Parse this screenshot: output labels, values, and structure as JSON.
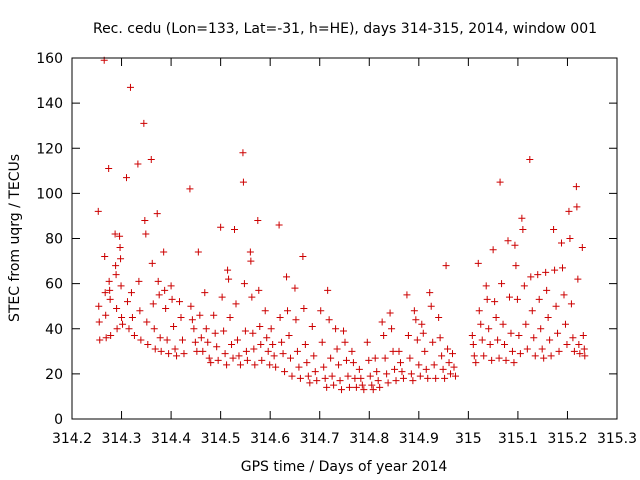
{
  "chart_data": {
    "type": "scatter",
    "title": "Rec. cedu (Lon=133, Lat=-31, h=HE), days 314-315, 2014, window 001",
    "xlabel": "GPS time / Days of year 2014",
    "ylabel": "STEC from uqrg / TECUs",
    "xlim": [
      314.2,
      315.3
    ],
    "ylim": [
      0,
      160
    ],
    "xticks": [
      314.2,
      314.3,
      314.4,
      314.5,
      314.6,
      314.7,
      314.8,
      314.9,
      315,
      315.1,
      315.2,
      315.3
    ],
    "xtick_labels": [
      "314.2",
      "314.3",
      "314.4",
      "314.5",
      "314.6",
      "314.7",
      "314.8",
      "314.9",
      "315",
      "315.1",
      "315.2",
      "315.3"
    ],
    "yticks": [
      0,
      20,
      40,
      60,
      80,
      100,
      120,
      140,
      160
    ],
    "ytick_labels": [
      "0",
      "20",
      "40",
      "60",
      "80",
      "100",
      "120",
      "140",
      "160"
    ],
    "grid": false,
    "legend": "none",
    "marker": "plus",
    "color": "#cc0000",
    "series": [
      {
        "points": [
          [
            314.253,
            92
          ],
          [
            314.254,
            50
          ],
          [
            314.255,
            43
          ],
          [
            314.256,
            35
          ],
          [
            314.265,
            159
          ],
          [
            314.266,
            72
          ],
          [
            314.267,
            56
          ],
          [
            314.268,
            46
          ],
          [
            314.269,
            36
          ],
          [
            314.274,
            111
          ],
          [
            314.275,
            61
          ],
          [
            314.276,
            57
          ],
          [
            314.277,
            53
          ],
          [
            314.278,
            37
          ],
          [
            314.287,
            82
          ],
          [
            314.288,
            68
          ],
          [
            314.289,
            64
          ],
          [
            314.29,
            49
          ],
          [
            314.291,
            40
          ],
          [
            314.296,
            81
          ],
          [
            314.297,
            76
          ],
          [
            314.298,
            71
          ],
          [
            314.299,
            59
          ],
          [
            314.3,
            45
          ],
          [
            314.302,
            42
          ],
          [
            314.31,
            107
          ],
          [
            314.312,
            52
          ],
          [
            314.315,
            40
          ],
          [
            314.318,
            147
          ],
          [
            314.32,
            56
          ],
          [
            314.322,
            45
          ],
          [
            314.326,
            37
          ],
          [
            314.333,
            113
          ],
          [
            314.335,
            61
          ],
          [
            314.337,
            48
          ],
          [
            314.339,
            35
          ],
          [
            314.345,
            131
          ],
          [
            314.347,
            88
          ],
          [
            314.349,
            82
          ],
          [
            314.351,
            43
          ],
          [
            314.353,
            33
          ],
          [
            314.36,
            115
          ],
          [
            314.362,
            69
          ],
          [
            314.364,
            51
          ],
          [
            314.366,
            40
          ],
          [
            314.368,
            31
          ],
          [
            314.372,
            91
          ],
          [
            314.374,
            61
          ],
          [
            314.376,
            55
          ],
          [
            314.378,
            36
          ],
          [
            314.38,
            30
          ],
          [
            314.385,
            74
          ],
          [
            314.387,
            57
          ],
          [
            314.389,
            49
          ],
          [
            314.392,
            35
          ],
          [
            314.395,
            29
          ],
          [
            314.4,
            59
          ],
          [
            314.402,
            53
          ],
          [
            314.405,
            41
          ],
          [
            314.408,
            31
          ],
          [
            314.411,
            28
          ],
          [
            314.417,
            52
          ],
          [
            314.42,
            45
          ],
          [
            314.423,
            35
          ],
          [
            314.426,
            29
          ],
          [
            314.438,
            102
          ],
          [
            314.44,
            50
          ],
          [
            314.443,
            44
          ],
          [
            314.446,
            40
          ],
          [
            314.449,
            34
          ],
          [
            314.452,
            30
          ],
          [
            314.455,
            74
          ],
          [
            314.458,
            46
          ],
          [
            314.461,
            36
          ],
          [
            314.464,
            30
          ],
          [
            314.468,
            56
          ],
          [
            314.471,
            40
          ],
          [
            314.474,
            34
          ],
          [
            314.477,
            27
          ],
          [
            314.48,
            25
          ],
          [
            314.486,
            46
          ],
          [
            314.489,
            38
          ],
          [
            314.492,
            32
          ],
          [
            314.495,
            26
          ],
          [
            314.5,
            85
          ],
          [
            314.503,
            54
          ],
          [
            314.506,
            39
          ],
          [
            314.509,
            29
          ],
          [
            314.512,
            24
          ],
          [
            314.514,
            66
          ],
          [
            314.516,
            62
          ],
          [
            314.519,
            45
          ],
          [
            314.522,
            33
          ],
          [
            314.525,
            27
          ],
          [
            314.528,
            84
          ],
          [
            314.531,
            51
          ],
          [
            314.534,
            35
          ],
          [
            314.537,
            28
          ],
          [
            314.54,
            24
          ],
          [
            314.545,
            118
          ],
          [
            314.546,
            105
          ],
          [
            314.548,
            60
          ],
          [
            314.55,
            39
          ],
          [
            314.552,
            30
          ],
          [
            314.554,
            26
          ],
          [
            314.56,
            74
          ],
          [
            314.561,
            70
          ],
          [
            314.563,
            54
          ],
          [
            314.565,
            38
          ],
          [
            314.567,
            31
          ],
          [
            314.569,
            24
          ],
          [
            314.575,
            88
          ],
          [
            314.577,
            57
          ],
          [
            314.579,
            41
          ],
          [
            314.581,
            33
          ],
          [
            314.583,
            26
          ],
          [
            314.59,
            48
          ],
          [
            314.593,
            36
          ],
          [
            314.596,
            30
          ],
          [
            314.599,
            24
          ],
          [
            314.602,
            40
          ],
          [
            314.605,
            33
          ],
          [
            314.608,
            28
          ],
          [
            314.611,
            23
          ],
          [
            314.618,
            86
          ],
          [
            314.62,
            45
          ],
          [
            314.623,
            34
          ],
          [
            314.626,
            29
          ],
          [
            314.629,
            21
          ],
          [
            314.633,
            63
          ],
          [
            314.635,
            48
          ],
          [
            314.638,
            37
          ],
          [
            314.641,
            27
          ],
          [
            314.644,
            19
          ],
          [
            314.65,
            58
          ],
          [
            314.652,
            44
          ],
          [
            314.655,
            30
          ],
          [
            314.658,
            23
          ],
          [
            314.661,
            18
          ],
          [
            314.666,
            72
          ],
          [
            314.668,
            49
          ],
          [
            314.671,
            33
          ],
          [
            314.674,
            25
          ],
          [
            314.677,
            19
          ],
          [
            314.68,
            16
          ],
          [
            314.685,
            41
          ],
          [
            314.688,
            28
          ],
          [
            314.691,
            21
          ],
          [
            314.694,
            17
          ],
          [
            314.702,
            48
          ],
          [
            314.705,
            34
          ],
          [
            314.708,
            23
          ],
          [
            314.711,
            18
          ],
          [
            314.714,
            14
          ],
          [
            314.716,
            57
          ],
          [
            314.719,
            44
          ],
          [
            314.722,
            27
          ],
          [
            314.725,
            19
          ],
          [
            314.728,
            15
          ],
          [
            314.732,
            40
          ],
          [
            314.735,
            31
          ],
          [
            314.738,
            24
          ],
          [
            314.741,
            17
          ],
          [
            314.744,
            13
          ],
          [
            314.748,
            39
          ],
          [
            314.751,
            34
          ],
          [
            314.754,
            26
          ],
          [
            314.757,
            19
          ],
          [
            314.76,
            14
          ],
          [
            314.765,
            30
          ],
          [
            314.768,
            25
          ],
          [
            314.771,
            18
          ],
          [
            314.774,
            14
          ],
          [
            314.78,
            22
          ],
          [
            314.783,
            18
          ],
          [
            314.786,
            15
          ],
          [
            314.789,
            13
          ],
          [
            314.796,
            34
          ],
          [
            314.799,
            26
          ],
          [
            314.802,
            19
          ],
          [
            314.805,
            15
          ],
          [
            314.808,
            13
          ],
          [
            314.812,
            27
          ],
          [
            314.815,
            21
          ],
          [
            314.818,
            17
          ],
          [
            314.821,
            14
          ],
          [
            314.826,
            43
          ],
          [
            314.829,
            37
          ],
          [
            314.832,
            27
          ],
          [
            314.835,
            20
          ],
          [
            314.838,
            16
          ],
          [
            314.842,
            47
          ],
          [
            314.845,
            40
          ],
          [
            314.848,
            30
          ],
          [
            314.851,
            22
          ],
          [
            314.854,
            17
          ],
          [
            314.86,
            30
          ],
          [
            314.863,
            25
          ],
          [
            314.866,
            21
          ],
          [
            314.869,
            18
          ],
          [
            314.876,
            55
          ],
          [
            314.879,
            37
          ],
          [
            314.882,
            27
          ],
          [
            314.885,
            20
          ],
          [
            314.888,
            17
          ],
          [
            314.891,
            48
          ],
          [
            314.894,
            44
          ],
          [
            314.897,
            35
          ],
          [
            314.9,
            24
          ],
          [
            314.903,
            19
          ],
          [
            314.906,
            42
          ],
          [
            314.909,
            38
          ],
          [
            314.912,
            30
          ],
          [
            314.915,
            22
          ],
          [
            314.918,
            18
          ],
          [
            314.922,
            56
          ],
          [
            314.925,
            50
          ],
          [
            314.928,
            34
          ],
          [
            314.931,
            24
          ],
          [
            314.934,
            18
          ],
          [
            314.94,
            45
          ],
          [
            314.943,
            36
          ],
          [
            314.946,
            28
          ],
          [
            314.949,
            22
          ],
          [
            314.952,
            18
          ],
          [
            314.955,
            68
          ],
          [
            314.958,
            31
          ],
          [
            314.961,
            25
          ],
          [
            314.964,
            20
          ],
          [
            314.968,
            29
          ],
          [
            314.971,
            23
          ],
          [
            314.974,
            19
          ],
          [
            315.008,
            37
          ],
          [
            315.01,
            33
          ],
          [
            315.012,
            28
          ],
          [
            315.015,
            25
          ],
          [
            315.02,
            69
          ],
          [
            315.022,
            48
          ],
          [
            315.025,
            42
          ],
          [
            315.028,
            35
          ],
          [
            315.031,
            28
          ],
          [
            315.036,
            59
          ],
          [
            315.038,
            53
          ],
          [
            315.041,
            40
          ],
          [
            315.044,
            33
          ],
          [
            315.047,
            26
          ],
          [
            315.05,
            75
          ],
          [
            315.053,
            52
          ],
          [
            315.056,
            45
          ],
          [
            315.059,
            35
          ],
          [
            315.062,
            27
          ],
          [
            315.064,
            105
          ],
          [
            315.067,
            60
          ],
          [
            315.07,
            42
          ],
          [
            315.073,
            33
          ],
          [
            315.076,
            26
          ],
          [
            315.08,
            79
          ],
          [
            315.083,
            54
          ],
          [
            315.086,
            38
          ],
          [
            315.089,
            30
          ],
          [
            315.092,
            25
          ],
          [
            315.094,
            77
          ],
          [
            315.096,
            68
          ],
          [
            315.099,
            53
          ],
          [
            315.102,
            37
          ],
          [
            315.105,
            29
          ],
          [
            315.108,
            89
          ],
          [
            315.11,
            84
          ],
          [
            315.113,
            59
          ],
          [
            315.116,
            42
          ],
          [
            315.119,
            31
          ],
          [
            315.124,
            115
          ],
          [
            315.126,
            63
          ],
          [
            315.129,
            48
          ],
          [
            315.132,
            36
          ],
          [
            315.135,
            28
          ],
          [
            315.14,
            64
          ],
          [
            315.143,
            53
          ],
          [
            315.146,
            40
          ],
          [
            315.149,
            31
          ],
          [
            315.152,
            27
          ],
          [
            315.156,
            65
          ],
          [
            315.158,
            57
          ],
          [
            315.161,
            45
          ],
          [
            315.164,
            35
          ],
          [
            315.167,
            28
          ],
          [
            315.172,
            84
          ],
          [
            315.174,
            66
          ],
          [
            315.177,
            50
          ],
          [
            315.18,
            38
          ],
          [
            315.183,
            30
          ],
          [
            315.188,
            78
          ],
          [
            315.19,
            67
          ],
          [
            315.193,
            55
          ],
          [
            315.196,
            42
          ],
          [
            315.199,
            33
          ],
          [
            315.203,
            92
          ],
          [
            315.205,
            80
          ],
          [
            315.208,
            51
          ],
          [
            315.211,
            36
          ],
          [
            315.214,
            30
          ],
          [
            315.218,
            103
          ],
          [
            315.219,
            94
          ],
          [
            315.221,
            62
          ],
          [
            315.223,
            33
          ],
          [
            315.225,
            29
          ],
          [
            315.23,
            76
          ],
          [
            315.232,
            37
          ],
          [
            315.234,
            31
          ],
          [
            315.235,
            28
          ]
        ]
      }
    ]
  }
}
